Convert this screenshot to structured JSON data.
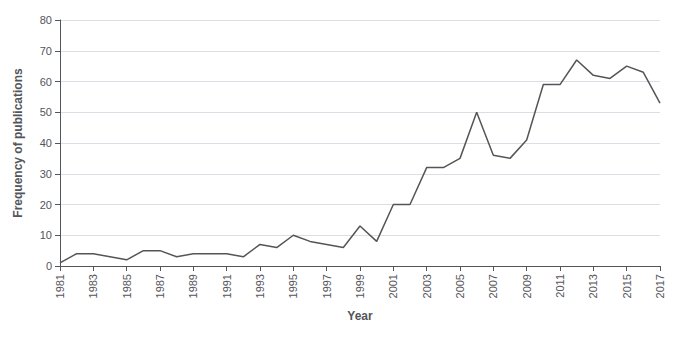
{
  "chart_data": {
    "type": "line",
    "x": [
      1981,
      1982,
      1983,
      1984,
      1985,
      1986,
      1987,
      1988,
      1989,
      1990,
      1991,
      1992,
      1993,
      1994,
      1995,
      1996,
      1997,
      1998,
      1999,
      2000,
      2001,
      2002,
      2003,
      2004,
      2005,
      2006,
      2007,
      2008,
      2009,
      2010,
      2011,
      2012,
      2013,
      2014,
      2015,
      2016,
      2017
    ],
    "values": [
      1,
      4,
      4,
      3,
      2,
      5,
      5,
      3,
      4,
      4,
      4,
      3,
      7,
      6,
      10,
      8,
      7,
      6,
      13,
      8,
      20,
      20,
      32,
      32,
      35,
      50,
      36,
      35,
      41,
      59,
      59,
      67,
      62,
      61,
      65,
      63,
      53
    ],
    "xlabel": "Year",
    "ylabel": "Frequency of publications",
    "xlim": [
      1981,
      2017
    ],
    "xticks": [
      1981,
      1983,
      1985,
      1987,
      1989,
      1991,
      1993,
      1995,
      1997,
      1999,
      2001,
      2003,
      2005,
      2007,
      2009,
      2011,
      2013,
      2015,
      2017
    ],
    "ylim": [
      0,
      80
    ],
    "yticks": [
      0,
      10,
      20,
      30,
      40,
      50,
      60,
      70,
      80
    ],
    "color": "#555555",
    "grid": true
  }
}
